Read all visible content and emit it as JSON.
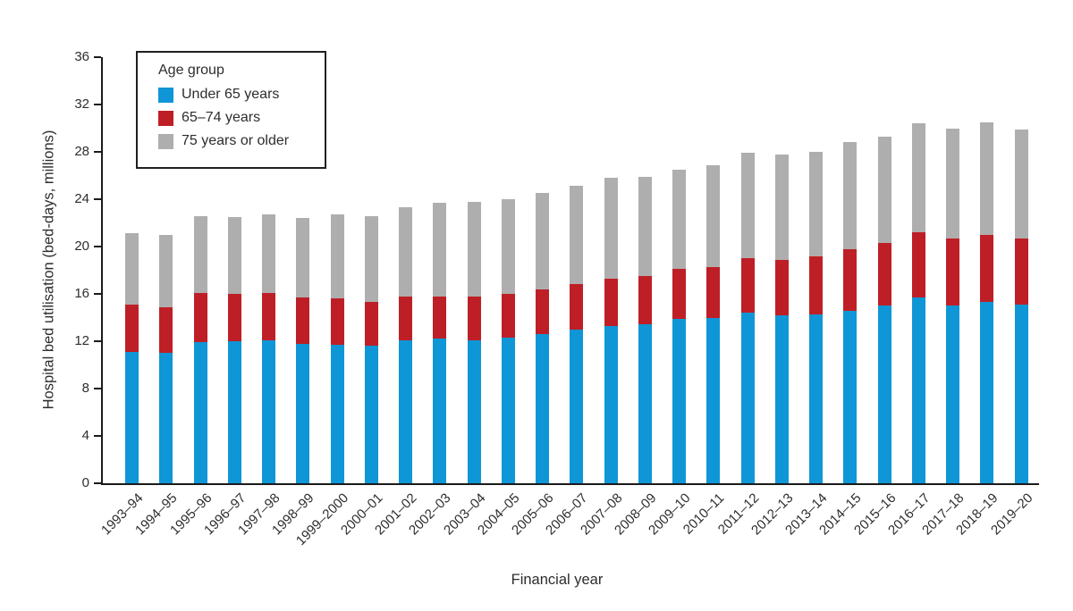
{
  "chart_data": {
    "type": "bar",
    "stacked": true,
    "title": "",
    "xlabel": "Financial year",
    "ylabel": "Hospital bed utilisation (bed-days, millions)",
    "ylim": [
      0,
      36
    ],
    "ytick_step": 4,
    "grid": false,
    "legend": {
      "title": "Age group",
      "position": "top-left"
    },
    "categories": [
      "1993–94",
      "1994–95",
      "1995–96",
      "1996–97",
      "1997–98",
      "1998–99",
      "1999–2000",
      "2000–01",
      "2001–02",
      "2002–03",
      "2003–04",
      "2004–05",
      "2005–06",
      "2006–07",
      "2007–08",
      "2008–09",
      "2009–10",
      "2010–11",
      "2011–12",
      "2012–13",
      "2013–14",
      "2014–15",
      "2015–16",
      "2016–17",
      "2017–18",
      "2018–19",
      "2019–20"
    ],
    "series": [
      {
        "name": "Under 65 years",
        "color": "#0F96D7",
        "values": [
          11.1,
          11.0,
          11.9,
          12.0,
          12.1,
          11.8,
          11.7,
          11.6,
          12.1,
          12.2,
          12.1,
          12.3,
          12.6,
          13.0,
          13.3,
          13.4,
          13.9,
          14.0,
          14.4,
          14.2,
          14.3,
          14.6,
          15.0,
          15.7,
          15.0,
          15.3,
          15.1
        ]
      },
      {
        "name": "65–74 years",
        "color": "#BE1F26",
        "values": [
          4.0,
          3.9,
          4.2,
          4.0,
          4.0,
          3.9,
          3.9,
          3.7,
          3.7,
          3.6,
          3.7,
          3.7,
          3.8,
          3.8,
          4.0,
          4.1,
          4.2,
          4.3,
          4.6,
          4.7,
          4.9,
          5.2,
          5.3,
          5.5,
          5.7,
          5.7,
          5.6
        ]
      },
      {
        "name": "75 years or older",
        "color": "#AFAEAE",
        "values": [
          6.0,
          6.1,
          6.5,
          6.5,
          6.6,
          6.7,
          7.1,
          7.3,
          7.5,
          7.9,
          8.0,
          8.0,
          8.1,
          8.3,
          8.5,
          8.4,
          8.4,
          8.6,
          8.9,
          8.9,
          8.8,
          9.0,
          9.0,
          9.2,
          9.3,
          9.5,
          9.2
        ]
      }
    ],
    "axis_color": "#1b1b1b",
    "background_color": "#ffffff"
  }
}
